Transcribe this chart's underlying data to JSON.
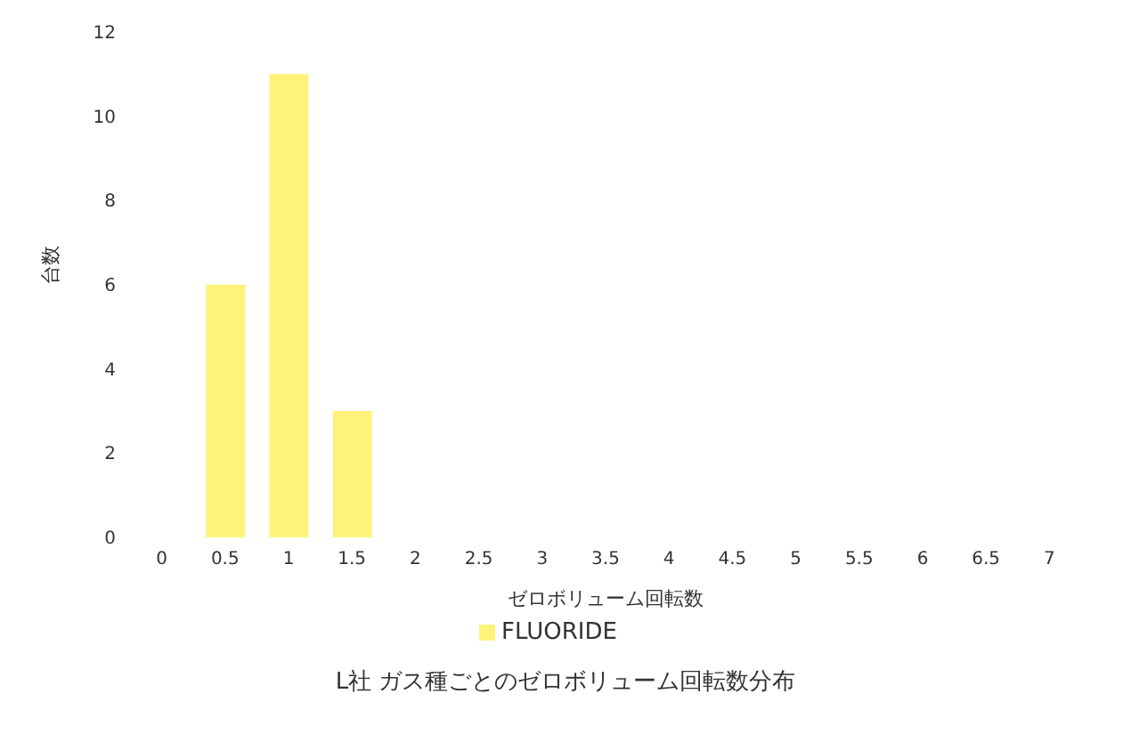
{
  "chart_data": {
    "type": "bar",
    "title": "L社 ガス種ごとのゼロボリューム回転数分布",
    "xlabel": "ゼロボリューム回転数",
    "ylabel": "台数",
    "categories": [
      "0",
      "0.5",
      "1",
      "1.5",
      "2",
      "2.5",
      "3",
      "3.5",
      "4",
      "4.5",
      "5",
      "5.5",
      "6",
      "6.5",
      "7"
    ],
    "series": [
      {
        "name": "FLUORIDE",
        "color": "#fff27a",
        "values": [
          0,
          6,
          11,
          3,
          0,
          0,
          0,
          0,
          0,
          0,
          0,
          0,
          0,
          0,
          0
        ]
      }
    ],
    "ylim": [
      0,
      12
    ],
    "yticks": [
      0,
      2,
      4,
      6,
      8,
      10,
      12
    ],
    "grid": false,
    "legend": "bottom"
  }
}
